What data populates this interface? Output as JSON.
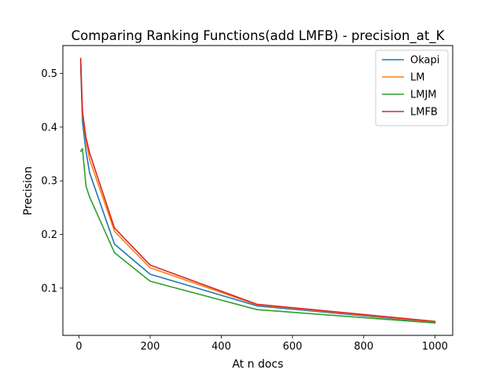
{
  "chart_data": {
    "type": "line",
    "title": "Comparing Ranking Functions(add LMFB) - precision_at_K",
    "xlabel": "At n docs",
    "ylabel": "Precision",
    "xlim": [
      -45,
      1050
    ],
    "ylim": [
      0.012,
      0.552
    ],
    "xticks": [
      0,
      200,
      400,
      600,
      800,
      1000
    ],
    "xtick_labels": [
      "0",
      "200",
      "400",
      "600",
      "800",
      "1000"
    ],
    "yticks": [
      0.1,
      0.2,
      0.3,
      0.4,
      0.5
    ],
    "ytick_labels": [
      "0.1",
      "0.2",
      "0.3",
      "0.4",
      "0.5"
    ],
    "grid": false,
    "legend_position": "top-right",
    "x": [
      5,
      10,
      20,
      30,
      100,
      200,
      500,
      1000
    ],
    "series": [
      {
        "name": "Okapi",
        "color": "#1f77b4",
        "values": [
          0.515,
          0.41,
          0.355,
          0.315,
          0.182,
          0.126,
          0.067,
          0.036
        ]
      },
      {
        "name": "LM",
        "color": "#ff7f0e",
        "values": [
          0.525,
          0.425,
          0.375,
          0.34,
          0.206,
          0.138,
          0.069,
          0.037
        ]
      },
      {
        "name": "LMJM",
        "color": "#2ca02c",
        "values": [
          0.355,
          0.36,
          0.29,
          0.27,
          0.166,
          0.113,
          0.06,
          0.035
        ]
      },
      {
        "name": "LMFB",
        "color": "#d62728",
        "values": [
          0.528,
          0.43,
          0.38,
          0.352,
          0.212,
          0.143,
          0.07,
          0.038
        ]
      }
    ]
  }
}
